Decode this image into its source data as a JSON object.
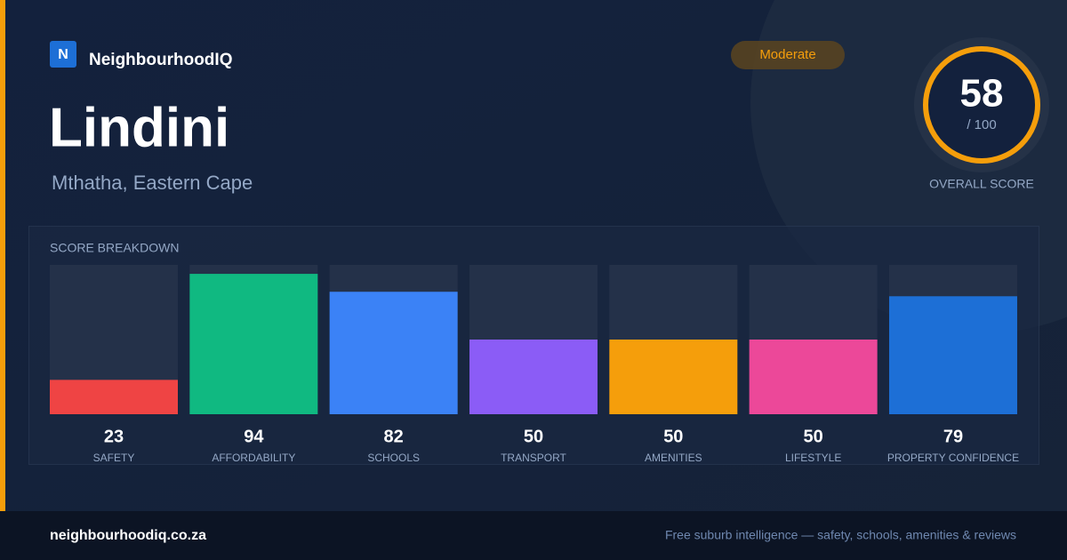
{
  "brand": {
    "logo": "N",
    "name": "NeighbourhoodIQ"
  },
  "title": "Lindini",
  "subtitle": "Mthatha, Eastern Cape",
  "badge": "Moderate",
  "score": {
    "value": 58,
    "max_label": "/ 100",
    "caption": "OVERALL SCORE"
  },
  "chart_data": {
    "type": "bar",
    "title": "SCORE BREAKDOWN",
    "categories": [
      "SAFETY",
      "AFFORDABILITY",
      "SCHOOLS",
      "TRANSPORT",
      "AMENITIES",
      "LIFESTYLE",
      "PROPERTY CONFIDENCE"
    ],
    "values": [
      23,
      94,
      82,
      50,
      50,
      50,
      79
    ],
    "colors": [
      "#ef4444",
      "#10b981",
      "#3b82f6",
      "#8b5cf6",
      "#f59e0b",
      "#ec4899",
      "#1d6fd6"
    ],
    "ylim": [
      0,
      100
    ]
  },
  "footer": {
    "url": "neighbourhoodiq.co.za",
    "tagline": "Free suburb intelligence — safety, schools, amenities & reviews"
  }
}
